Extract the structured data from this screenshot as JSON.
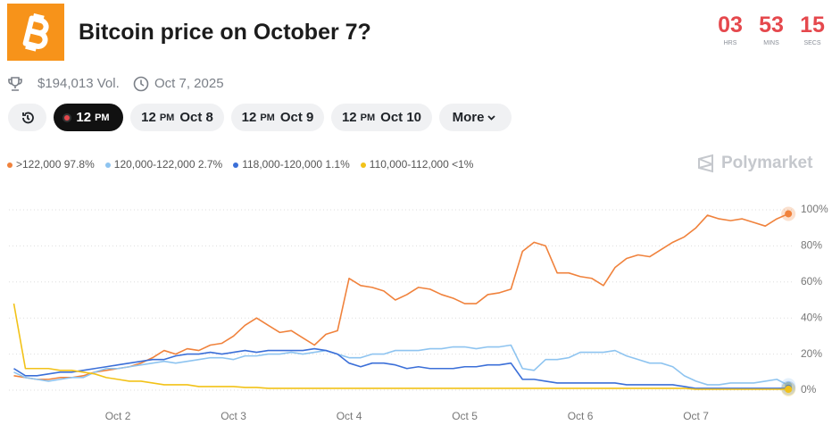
{
  "header": {
    "title": "Bitcoin price on October 7?",
    "volume": "$194,013 Vol.",
    "date": "Oct 7, 2025",
    "countdown": [
      {
        "value": "03",
        "unit": "HRS"
      },
      {
        "value": "53",
        "unit": "MINS"
      },
      {
        "value": "15",
        "unit": "SECS"
      }
    ]
  },
  "tabs": [
    {
      "hour": "12",
      "meridiem": "PM"
    },
    {
      "hour": "12",
      "meridiem": "PM",
      "date": "Oct 8"
    },
    {
      "hour": "12",
      "meridiem": "PM",
      "date": "Oct 9"
    },
    {
      "hour": "12",
      "meridiem": "PM",
      "date": "Oct 10"
    },
    {
      "label": "More"
    }
  ],
  "brand": "Polymarket",
  "chart_data": {
    "type": "line",
    "categories": [
      null,
      null,
      null,
      null,
      null,
      null,
      null,
      null,
      null,
      "Oct 2",
      null,
      null,
      null,
      null,
      null,
      null,
      null,
      null,
      null,
      "Oct 3",
      null,
      null,
      null,
      null,
      null,
      null,
      null,
      null,
      null,
      "Oct 4",
      null,
      null,
      null,
      null,
      null,
      null,
      null,
      null,
      null,
      "Oct 5",
      null,
      null,
      null,
      null,
      null,
      null,
      null,
      null,
      null,
      "Oct 6",
      null,
      null,
      null,
      null,
      null,
      null,
      null,
      null,
      null,
      "Oct 7",
      null,
      null,
      null,
      null,
      null,
      null,
      null,
      null
    ],
    "series": [
      {
        "name": ">122,000",
        "legend_value": "97.8%",
        "color": "#f0823c",
        "values": [
          8,
          7,
          6,
          6,
          7,
          7,
          8,
          10,
          11,
          12,
          13,
          15,
          18,
          22,
          20,
          23,
          22,
          25,
          26,
          30,
          36,
          40,
          36,
          32,
          33,
          29,
          25,
          31,
          33,
          62,
          58,
          57,
          55,
          50,
          53,
          57,
          56,
          53,
          51,
          48,
          48,
          53,
          54,
          56,
          77,
          82,
          80,
          65,
          65,
          63,
          62,
          58,
          68,
          73,
          75,
          74,
          78,
          82,
          85,
          90,
          97,
          95,
          94,
          95,
          93,
          91,
          95,
          97.8
        ]
      },
      {
        "name": "120,000-122,000",
        "legend_value": "2.7%",
        "color": "#8ec4f0",
        "values": [
          10,
          7,
          6,
          5,
          6,
          7,
          7,
          10,
          12,
          12,
          13,
          14,
          15,
          16,
          15,
          16,
          17,
          18,
          18,
          17,
          19,
          19,
          20,
          20,
          21,
          20,
          21,
          22,
          20,
          18,
          18,
          20,
          20,
          22,
          22,
          22,
          23,
          23,
          24,
          24,
          23,
          24,
          24,
          25,
          12,
          11,
          17,
          17,
          18,
          21,
          21,
          21,
          22,
          19,
          17,
          15,
          15,
          13,
          8,
          5,
          3,
          3,
          4,
          4,
          4,
          5,
          6,
          2.7
        ]
      },
      {
        "name": "118,000-120,000",
        "legend_value": "1.1%",
        "color": "#3b6fd8",
        "values": [
          12,
          8,
          8,
          9,
          10,
          10,
          11,
          12,
          13,
          14,
          15,
          16,
          17,
          17,
          19,
          20,
          20,
          21,
          20,
          21,
          22,
          21,
          22,
          22,
          22,
          22,
          23,
          22,
          20,
          15,
          13,
          15,
          15,
          14,
          12,
          13,
          12,
          12,
          12,
          13,
          13,
          14,
          14,
          15,
          6,
          6,
          5,
          4,
          4,
          4,
          4,
          4,
          4,
          3,
          3,
          3,
          3,
          3,
          2,
          1,
          1,
          1,
          1,
          1,
          1,
          1,
          1,
          1.1
        ]
      },
      {
        "name": "110,000-112,000",
        "legend_value": "<1%",
        "color": "#f2c218",
        "values": [
          48,
          12,
          12,
          12,
          11,
          11,
          10,
          9,
          7,
          6,
          5,
          5,
          4,
          3,
          3,
          3,
          2,
          2,
          2,
          2,
          1.5,
          1.5,
          1,
          1,
          1,
          1,
          1,
          1,
          1,
          1,
          1,
          1,
          1,
          1,
          1,
          1,
          1,
          1,
          1,
          1,
          1,
          1,
          1,
          1,
          1,
          1,
          1,
          1,
          1,
          1,
          1,
          1,
          1,
          1,
          1,
          1,
          1,
          1,
          1,
          0.5,
          0.5,
          0.5,
          0.5,
          0.5,
          0.5,
          0.5,
          0.5,
          0.5
        ]
      }
    ],
    "ylim": [
      0,
      100
    ],
    "yticks": [
      {
        "value": 0,
        "label": "0%"
      },
      {
        "value": 20,
        "label": "20%"
      },
      {
        "value": 40,
        "label": "40%"
      },
      {
        "value": 60,
        "label": "60%"
      },
      {
        "value": 80,
        "label": "80%"
      },
      {
        "value": 100,
        "label": "100%"
      }
    ],
    "grid": true
  }
}
